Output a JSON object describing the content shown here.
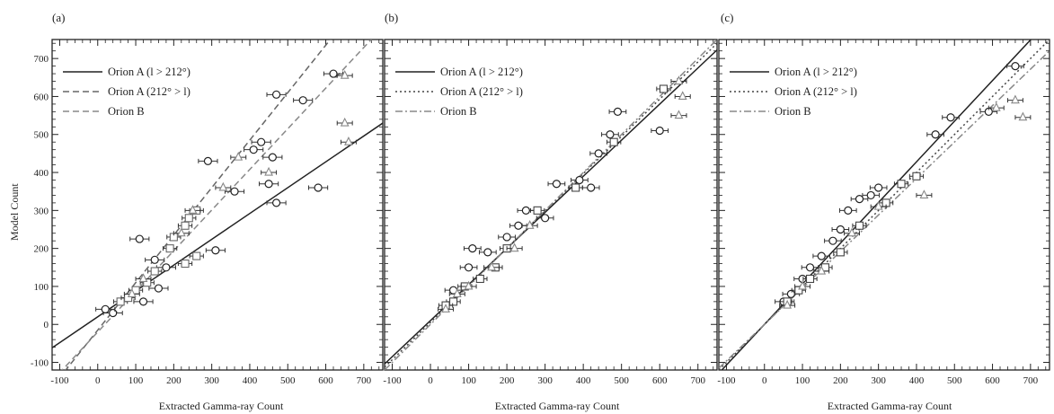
{
  "figure": {
    "panel_labels": [
      "(a)",
      "(b)",
      "(c)"
    ],
    "xlabel": "Extracted Gamma-ray Count",
    "ylabel": "Model Count",
    "xticks": [
      -100,
      0,
      100,
      200,
      300,
      400,
      500,
      600,
      700
    ],
    "yticks": [
      -100,
      0,
      100,
      200,
      300,
      400,
      500,
      600,
      700
    ]
  },
  "chart_data": [
    {
      "type": "scatter",
      "panel": "(a)",
      "xlabel": "Extracted Gamma-ray Count",
      "ylabel": "Model Count",
      "xlim": [
        -120,
        750
      ],
      "ylim": [
        -120,
        750
      ],
      "legend_placement": "top-left",
      "series": [
        {
          "name": "Orion A (l > 212°)",
          "marker": "circle",
          "line": "solid",
          "color": "#222222",
          "fit": {
            "slope": 0.68,
            "intercept": 20
          },
          "points": [
            [
              620,
              660
            ],
            [
              470,
              605
            ],
            [
              540,
              590
            ],
            [
              430,
              480
            ],
            [
              290,
              430
            ],
            [
              410,
              460
            ],
            [
              460,
              440
            ],
            [
              450,
              370
            ],
            [
              580,
              360
            ],
            [
              360,
              350
            ],
            [
              470,
              320
            ],
            [
              310,
              195
            ],
            [
              110,
              225
            ],
            [
              150,
              170
            ],
            [
              180,
              150
            ],
            [
              160,
              95
            ],
            [
              120,
              60
            ],
            [
              40,
              30
            ],
            [
              20,
              40
            ]
          ],
          "xerr": 25
        },
        {
          "name": "Orion A (212° > l)",
          "marker": "square",
          "line": "dashed",
          "color": "#666666",
          "fit": {
            "slope": 1.25,
            "intercept": -15
          },
          "points": [
            [
              200,
              230
            ],
            [
              230,
              260
            ],
            [
              260,
              300
            ],
            [
              240,
              280
            ],
            [
              190,
              200
            ],
            [
              150,
              140
            ],
            [
              130,
              110
            ],
            [
              100,
              90
            ],
            [
              60,
              60
            ],
            [
              80,
              70
            ],
            [
              260,
              180
            ],
            [
              230,
              160
            ]
          ],
          "xerr": 18
        },
        {
          "name": "Orion B",
          "marker": "triangle",
          "line": "dashed",
          "color": "#888888",
          "fit": {
            "slope": 1.07,
            "intercept": -20
          },
          "points": [
            [
              650,
              655
            ],
            [
              650,
              530
            ],
            [
              370,
              440
            ],
            [
              330,
              360
            ],
            [
              250,
              300
            ],
            [
              220,
              240
            ],
            [
              450,
              400
            ],
            [
              660,
              480
            ],
            [
              120,
              120
            ],
            [
              90,
              80
            ]
          ],
          "xerr": 20
        }
      ]
    },
    {
      "type": "scatter",
      "panel": "(b)",
      "xlabel": "Extracted Gamma-ray Count",
      "ylabel": "",
      "xlim": [
        -120,
        750
      ],
      "ylim": [
        -120,
        750
      ],
      "legend_placement": "top-left",
      "series": [
        {
          "name": "Orion A (l > 212°)",
          "marker": "circle",
          "line": "solid",
          "color": "#222222",
          "fit": {
            "slope": 0.95,
            "intercept": 10
          },
          "points": [
            [
              490,
              560
            ],
            [
              600,
              510
            ],
            [
              470,
              500
            ],
            [
              440,
              450
            ],
            [
              420,
              360
            ],
            [
              390,
              380
            ],
            [
              330,
              370
            ],
            [
              300,
              280
            ],
            [
              250,
              300
            ],
            [
              230,
              260
            ],
            [
              200,
              230
            ],
            [
              150,
              190
            ],
            [
              110,
              200
            ],
            [
              100,
              150
            ],
            [
              60,
              90
            ]
          ],
          "xerr": 22
        },
        {
          "name": "Orion A (212° > l)",
          "marker": "square",
          "line": "dotted",
          "color": "#444444",
          "fit": {
            "slope": 0.98,
            "intercept": 5
          },
          "points": [
            [
              610,
              620
            ],
            [
              480,
              480
            ],
            [
              380,
              360
            ],
            [
              280,
              300
            ],
            [
              200,
              200
            ],
            [
              170,
              150
            ],
            [
              130,
              120
            ],
            [
              90,
              100
            ],
            [
              60,
              60
            ],
            [
              40,
              50
            ]
          ],
          "xerr": 18
        },
        {
          "name": "Orion B",
          "marker": "triangle",
          "line": "dashdot",
          "color": "#888888",
          "fit": {
            "slope": 1.0,
            "intercept": 0
          },
          "points": [
            [
              650,
              640
            ],
            [
              660,
              600
            ],
            [
              650,
              550
            ],
            [
              260,
              260
            ],
            [
              220,
              200
            ],
            [
              160,
              150
            ],
            [
              100,
              100
            ],
            [
              70,
              80
            ],
            [
              40,
              40
            ]
          ],
          "xerr": 20
        }
      ]
    },
    {
      "type": "scatter",
      "panel": "(c)",
      "xlabel": "Extracted Gamma-ray Count",
      "ylabel": "",
      "xlim": [
        -120,
        750
      ],
      "ylim": [
        -120,
        750
      ],
      "legend_placement": "top-left",
      "series": [
        {
          "name": "Orion A (l > 212°)",
          "marker": "circle",
          "line": "solid",
          "color": "#222222",
          "fit": {
            "slope": 1.07,
            "intercept": 0
          },
          "points": [
            [
              660,
              680
            ],
            [
              490,
              545
            ],
            [
              590,
              560
            ],
            [
              450,
              500
            ],
            [
              300,
              360
            ],
            [
              280,
              340
            ],
            [
              250,
              330
            ],
            [
              220,
              300
            ],
            [
              200,
              250
            ],
            [
              180,
              220
            ],
            [
              150,
              180
            ],
            [
              120,
              150
            ],
            [
              100,
              120
            ],
            [
              70,
              80
            ],
            [
              50,
              60
            ]
          ],
          "xerr": 22
        },
        {
          "name": "Orion A (212° > l)",
          "marker": "square",
          "line": "dotted",
          "color": "#444444",
          "fit": {
            "slope": 1.0,
            "intercept": 0
          },
          "points": [
            [
              400,
              390
            ],
            [
              360,
              370
            ],
            [
              320,
              320
            ],
            [
              250,
              260
            ],
            [
              200,
              190
            ],
            [
              160,
              150
            ],
            [
              120,
              120
            ],
            [
              90,
              90
            ],
            [
              60,
              60
            ]
          ],
          "xerr": 18
        },
        {
          "name": "Orion B",
          "marker": "triangle",
          "line": "dashdot",
          "color": "#888888",
          "fit": {
            "slope": 0.96,
            "intercept": 0
          },
          "points": [
            [
              660,
              590
            ],
            [
              680,
              545
            ],
            [
              610,
              570
            ],
            [
              420,
              340
            ],
            [
              300,
              310
            ],
            [
              230,
              240
            ],
            [
              150,
              140
            ],
            [
              100,
              100
            ],
            [
              60,
              50
            ]
          ],
          "xerr": 20
        }
      ]
    }
  ]
}
